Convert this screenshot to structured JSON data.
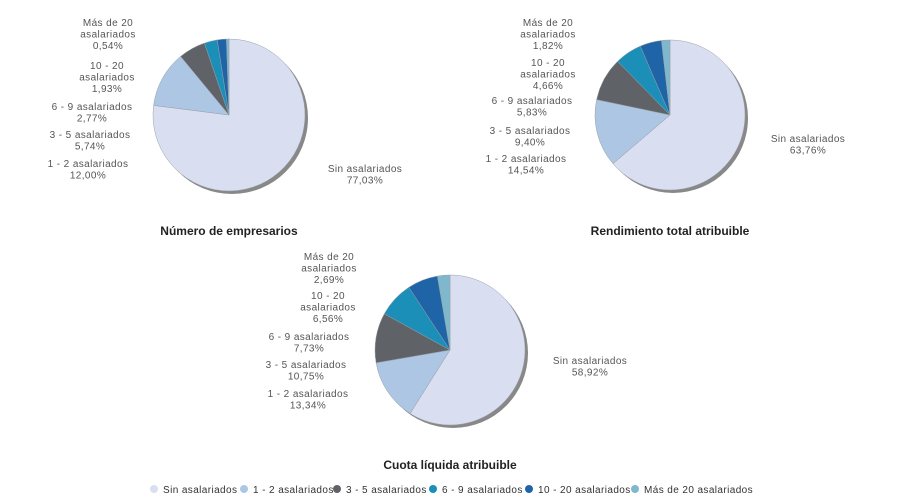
{
  "chart_data": [
    {
      "type": "pie",
      "title": "Número de empresarios",
      "labels": [
        "Sin asalariados",
        "1 - 2 asalariados",
        "3 - 5 asalariados",
        "6 - 9 asalariados",
        "10 - 20 asalariados",
        "Más de 20 asalariados"
      ],
      "values": [
        77.03,
        12.0,
        5.74,
        2.77,
        1.93,
        0.54
      ],
      "value_labels": [
        "77,03%",
        "12,00%",
        "5,74%",
        "2,77%",
        "1,93%",
        "0,54%"
      ]
    },
    {
      "type": "pie",
      "title": "Rendimiento total atribuible",
      "labels": [
        "Sin asalariados",
        "1 - 2 asalariados",
        "3 - 5 asalariados",
        "6 - 9 asalariados",
        "10 - 20 asalariados",
        "Más de 20 asalariados"
      ],
      "values": [
        63.76,
        14.54,
        9.4,
        5.83,
        4.66,
        1.82
      ],
      "value_labels": [
        "63,76%",
        "14,54%",
        "9,40%",
        "5,83%",
        "4,66%",
        "1,82%"
      ]
    },
    {
      "type": "pie",
      "title": "Cuota líquida atribuible",
      "labels": [
        "Sin asalariados",
        "1 - 2 asalariados",
        "3 - 5 asalariados",
        "6 - 9 asalariados",
        "10 - 20 asalariados",
        "Más de 20 asalariados"
      ],
      "values": [
        58.92,
        13.34,
        10.75,
        7.73,
        6.56,
        2.69
      ],
      "value_labels": [
        "58,92%",
        "13,34%",
        "10,75%",
        "7,73%",
        "6,56%",
        "2,69%"
      ]
    }
  ],
  "legend": {
    "placement": "bottom",
    "items": [
      "Sin asalariados",
      "1 - 2 asalariados",
      "3 - 5 asalariados",
      "6 - 9 asalariados",
      "10 - 20 asalariados",
      "Más de 20 asalariados"
    ]
  },
  "colors": [
    "#d9dff0",
    "#adc6e3",
    "#5f6368",
    "#1b8fb8",
    "#2064a8",
    "#7fb8cc"
  ]
}
